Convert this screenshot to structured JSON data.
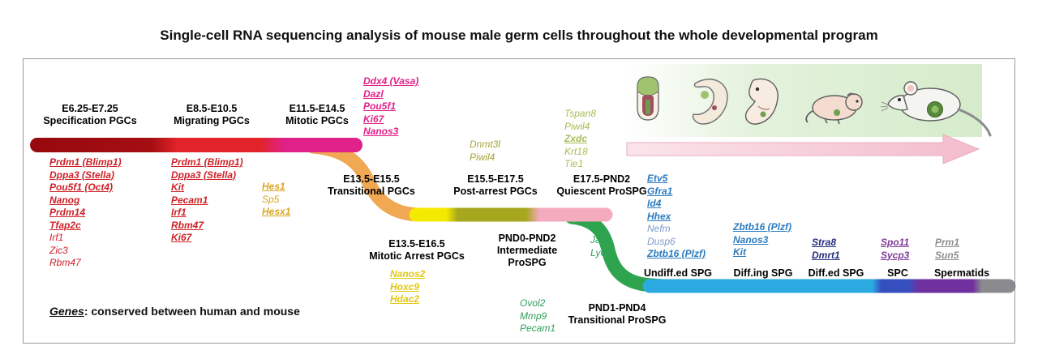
{
  "title": "Single-cell RNA sequencing analysis of mouse male germ cells throughout the whole developmental program",
  "footnote": {
    "term": "Genes",
    "rest": ": conserved between human and mouse"
  },
  "timeline": {
    "description": "developmental progression from embryo to adult mouse",
    "organism_stages": [
      "epiblast-embryo",
      "early-embryo",
      "fetus",
      "newborn-pup",
      "adult-mouse"
    ]
  },
  "stages": [
    {
      "id": "spec",
      "lines": [
        "E6.25-E7.25",
        "Specification PGCs"
      ]
    },
    {
      "id": "migrating",
      "lines": [
        "E8.5-E10.5",
        "Migrating PGCs"
      ]
    },
    {
      "id": "mitotic",
      "lines": [
        "E11.5-E14.5",
        "Mitotic PGCs"
      ]
    },
    {
      "id": "transitional-pgc",
      "lines": [
        "E13.5-E15.5",
        "Transitional PGCs"
      ]
    },
    {
      "id": "post-arrest",
      "lines": [
        "E15.5-E17.5",
        "Post-arrest PGCs"
      ]
    },
    {
      "id": "quiescent",
      "lines": [
        "E17.5-PND2",
        "Quiescent ProSPG"
      ]
    },
    {
      "id": "mitotic-arrest",
      "lines": [
        "E13.5-E16.5",
        "Mitotic Arrest PGCs"
      ]
    },
    {
      "id": "intermediate",
      "lines": [
        "PND0-PND2",
        "Intermediate",
        "ProSPG"
      ]
    },
    {
      "id": "transitional-prospg",
      "lines": [
        "PND1-PND4",
        "Transitional ProSPG"
      ]
    },
    {
      "id": "undiff-spg",
      "lines": [
        "Undiff.ed SPG"
      ]
    },
    {
      "id": "diffing-spg",
      "lines": [
        "Diff.ing SPG"
      ]
    },
    {
      "id": "diffed-spg",
      "lines": [
        "Diff.ed SPG"
      ]
    },
    {
      "id": "spc",
      "lines": [
        "SPC"
      ]
    },
    {
      "id": "spermatids",
      "lines": [
        "Spermatids"
      ]
    }
  ],
  "gene_groups": [
    {
      "id": "specification",
      "color": "#CE2127",
      "genes": [
        {
          "t": "Prdm1 (Blimp1)",
          "em": true
        },
        {
          "t": "Dppa3 (Stella)",
          "em": true
        },
        {
          "t": "Pou5f1 (Oct4)",
          "em": true
        },
        {
          "t": "Nanog",
          "em": true
        },
        {
          "t": "Prdm14",
          "em": true
        },
        {
          "t": "Tfap2c",
          "em": true
        },
        {
          "t": "Irf1",
          "em": false
        },
        {
          "t": "Zic3",
          "em": false
        },
        {
          "t": "Rbm47",
          "em": false
        }
      ]
    },
    {
      "id": "migrating",
      "color": "#CE2127",
      "genes": [
        {
          "t": "Prdm1 (Blimp1)",
          "em": true
        },
        {
          "t": "Dppa3 (Stella)",
          "em": true
        },
        {
          "t": "Kit",
          "em": true
        },
        {
          "t": "Pecam1",
          "em": true
        },
        {
          "t": "Irf1",
          "em": true
        },
        {
          "t": "Rbm47",
          "em": true
        },
        {
          "t": "Ki67",
          "em": true
        }
      ]
    },
    {
      "id": "early-mitotic",
      "color": "#D9A520",
      "genes": [
        {
          "t": "Hes1",
          "em": true
        },
        {
          "t": "Sp5",
          "em": false
        },
        {
          "t": "Hesx1",
          "em": true
        }
      ]
    },
    {
      "id": "mitotic",
      "color": "#E0218A",
      "genes": [
        {
          "t": "Ddx4 (Vasa)",
          "em": true
        },
        {
          "t": "Dazl",
          "em": true
        },
        {
          "t": "Pou5f1",
          "em": true
        },
        {
          "t": "Ki67",
          "em": true
        },
        {
          "t": "Nanos3",
          "em": true
        }
      ]
    },
    {
      "id": "post-arrest",
      "color": "#A8A33B",
      "genes": [
        {
          "t": "Dnmt3l",
          "em": false
        },
        {
          "t": "Piwil4",
          "em": false
        }
      ]
    },
    {
      "id": "quiescent",
      "color": "#A5BD55",
      "genes": [
        {
          "t": "Tspan8",
          "em": false
        },
        {
          "t": "Piwil4",
          "em": false
        },
        {
          "t": "Zxdc",
          "em": true
        },
        {
          "t": "Krt18",
          "em": false
        },
        {
          "t": "Tie1",
          "em": false
        }
      ]
    },
    {
      "id": "mitotic-arrest",
      "color": "#E2C712",
      "genes": [
        {
          "t": "Nanos2",
          "em": true
        },
        {
          "t": "Hoxc9",
          "em": true
        },
        {
          "t": "Hdac2",
          "em": true
        }
      ]
    },
    {
      "id": "intermediate",
      "color": "#2FA05C",
      "genes": [
        {
          "t": "Jak1",
          "em": false
        },
        {
          "t": "Ly6h",
          "em": false
        }
      ]
    },
    {
      "id": "transitional-prospg",
      "color": "#2FA05C",
      "genes": [
        {
          "t": "Ovol2",
          "em": false
        },
        {
          "t": "Mmp9",
          "em": false
        },
        {
          "t": "Pecam1",
          "em": false
        }
      ]
    },
    {
      "id": "undiff-spg",
      "color": "#2B7BC0",
      "genes": [
        {
          "t": "Etv5",
          "em": true
        },
        {
          "t": "Gfra1",
          "em": true
        },
        {
          "t": "Id4",
          "em": true
        },
        {
          "t": "Hhex",
          "em": true
        },
        {
          "t": "Nefm",
          "em": false,
          "c": "#7E9CC8"
        },
        {
          "t": "Dusp6",
          "em": false,
          "c": "#7E9CC8"
        },
        {
          "t": "Zbtb16 (Plzf)",
          "em": true
        }
      ]
    },
    {
      "id": "diffing-spg",
      "color": "#2B7BC0",
      "genes": [
        {
          "t": "Zbtb16 (Plzf)",
          "em": true
        },
        {
          "t": "Nanos3",
          "em": true
        },
        {
          "t": "Kit",
          "em": true
        }
      ]
    },
    {
      "id": "diffed-spg",
      "color": "#252C7E",
      "genes": [
        {
          "t": "Stra8",
          "em": true
        },
        {
          "t": "Dmrt1",
          "em": true
        }
      ]
    },
    {
      "id": "spc",
      "color": "#7D3C98",
      "genes": [
        {
          "t": "Spo11",
          "em": true
        },
        {
          "t": "Sycp3",
          "em": true
        }
      ]
    },
    {
      "id": "spermatids",
      "color": "#8D8D92",
      "genes": [
        {
          "t": "Prm1",
          "em": true
        },
        {
          "t": "Sun5",
          "em": true
        }
      ]
    }
  ],
  "ribbon_colors": {
    "specification": "#97090E",
    "migrating": "#E2232A",
    "mitotic": "#E0218A",
    "transitional_pgc": "#F0A852",
    "mitotic_arrest": "#F4EA00",
    "post_arrest": "#A6A71E",
    "quiescent": "#F4ABBE",
    "transitional_prospg": "#2EA44F",
    "spg": "#2BAAE2",
    "diffed_spg": "#3550BE",
    "spc": "#7030A0",
    "spermatids": "#8B8B8F"
  }
}
